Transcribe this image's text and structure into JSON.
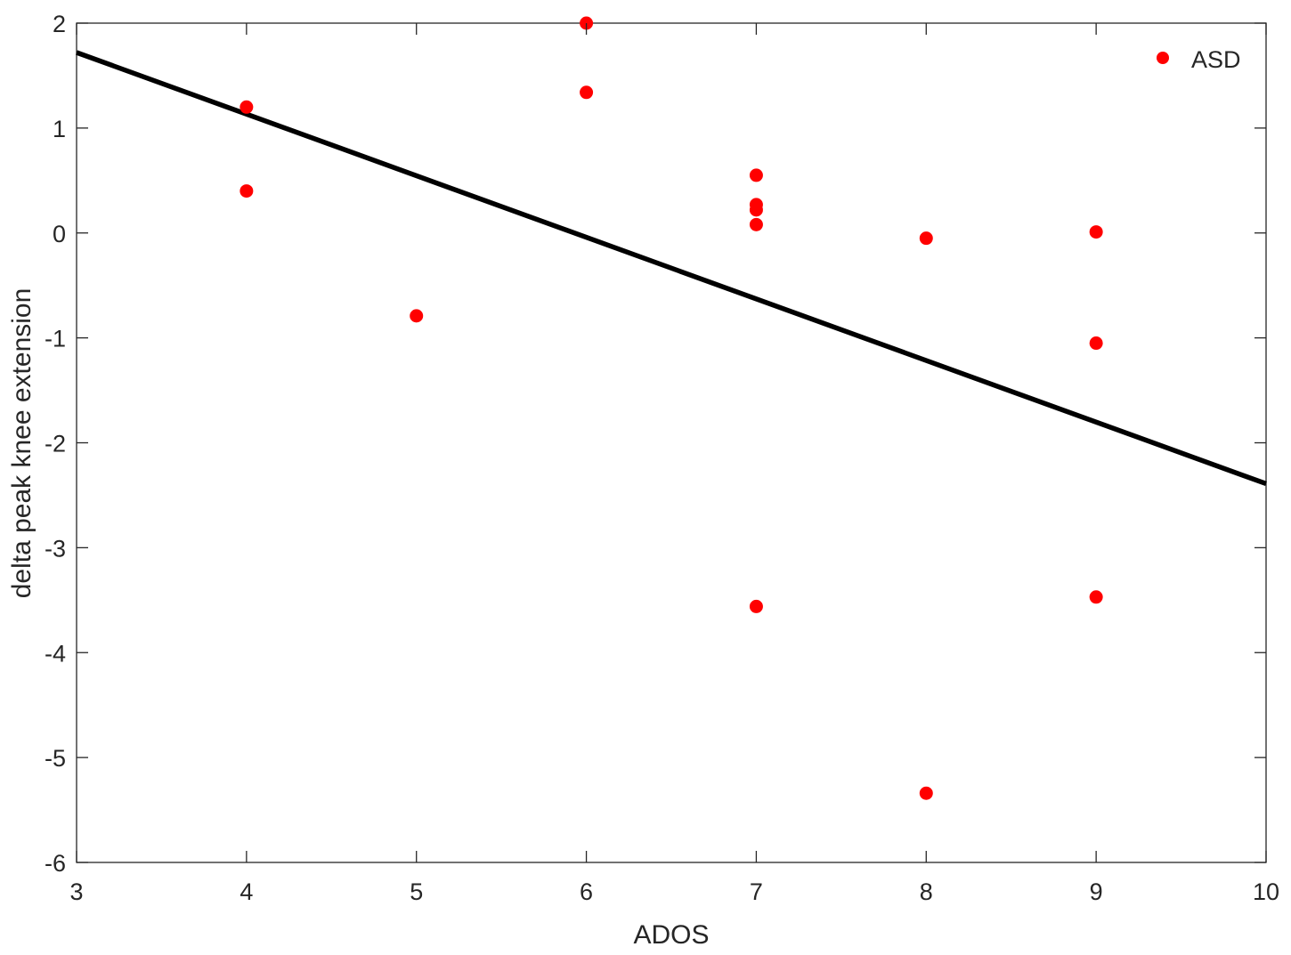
{
  "chart_data": {
    "type": "scatter",
    "title": "",
    "xlabel": "ADOS",
    "ylabel": "delta peak knee extension",
    "xlim": [
      3,
      10
    ],
    "ylim": [
      -6,
      2
    ],
    "x_ticks": [
      3,
      4,
      5,
      6,
      7,
      8,
      9,
      10
    ],
    "y_ticks": [
      -6,
      -5,
      -4,
      -3,
      -2,
      -1,
      0,
      1,
      2
    ],
    "x_tick_labels": [
      "3",
      "4",
      "5",
      "6",
      "7",
      "8",
      "9",
      "10"
    ],
    "y_tick_labels": [
      "-6",
      "-5",
      "-4",
      "-3",
      "-2",
      "-1",
      "0",
      "1",
      "2"
    ],
    "grid": false,
    "legend_position": "top-right",
    "series": [
      {
        "name": "ASD",
        "color": "#ff0000",
        "marker": "circle",
        "points": [
          {
            "x": 4,
            "y": 1.2
          },
          {
            "x": 4,
            "y": 0.4
          },
          {
            "x": 5,
            "y": -0.79
          },
          {
            "x": 6,
            "y": 2.0
          },
          {
            "x": 6,
            "y": 1.34
          },
          {
            "x": 7,
            "y": 0.55
          },
          {
            "x": 7,
            "y": 0.27
          },
          {
            "x": 7,
            "y": 0.22
          },
          {
            "x": 7,
            "y": 0.08
          },
          {
            "x": 7,
            "y": -3.56
          },
          {
            "x": 8,
            "y": -0.05
          },
          {
            "x": 8,
            "y": -5.34
          },
          {
            "x": 9,
            "y": 0.01
          },
          {
            "x": 9,
            "y": -1.05
          },
          {
            "x": 9,
            "y": -3.47
          }
        ]
      }
    ],
    "fit_line": {
      "color": "#000000",
      "points": [
        {
          "x": 3,
          "y": 1.72
        },
        {
          "x": 10,
          "y": -2.39
        }
      ]
    }
  }
}
